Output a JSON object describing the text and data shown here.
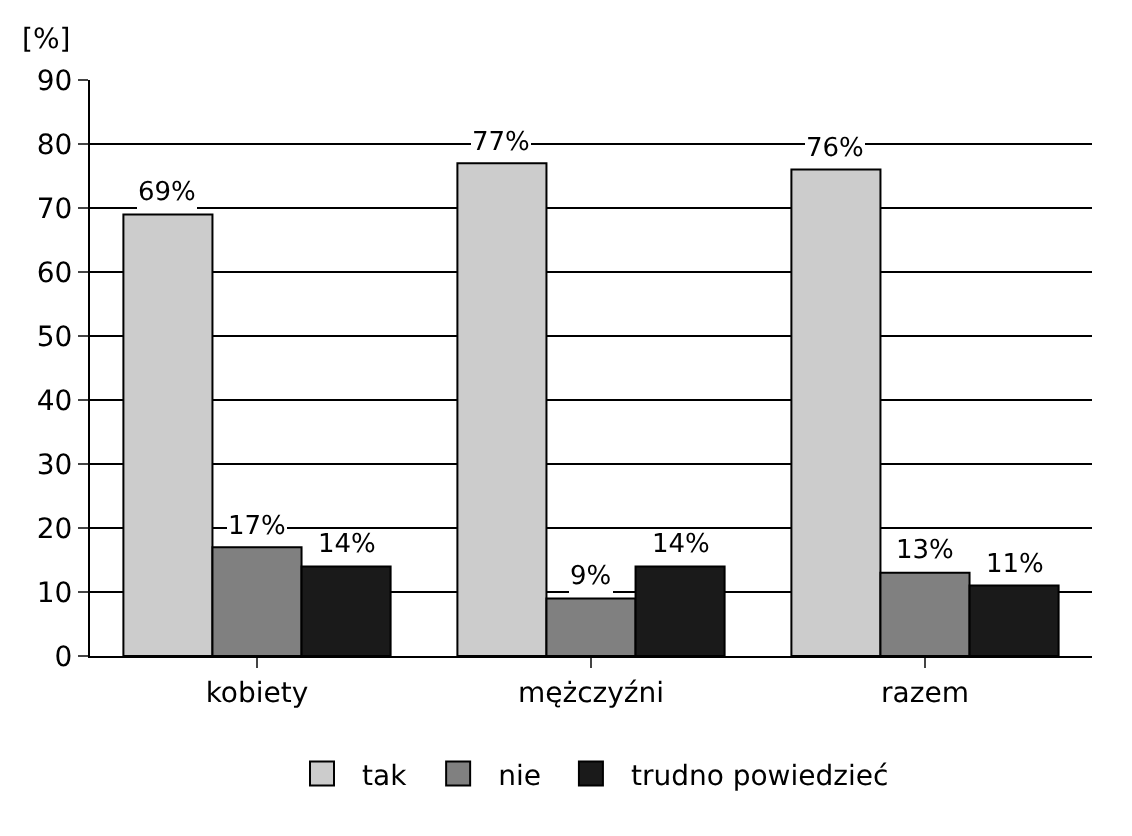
{
  "chart_data": {
    "type": "bar",
    "ylabel": "[%]",
    "categories": [
      "kobiety",
      "mężczyźni",
      "razem"
    ],
    "series": [
      {
        "name": "tak",
        "color": "#cccccc",
        "values": [
          69,
          77,
          76
        ],
        "value_labels": [
          "69%",
          "77%",
          "76%"
        ]
      },
      {
        "name": "nie",
        "color": "#808080",
        "values": [
          17,
          9,
          13
        ],
        "value_labels": [
          "17%",
          "9%",
          "13%"
        ]
      },
      {
        "name": "trudno powiedzieć",
        "color": "#1a1a1a",
        "values": [
          14,
          14,
          11
        ],
        "value_labels": [
          "14%",
          "14%",
          "11%"
        ]
      }
    ],
    "ylim": [
      0,
      90
    ],
    "yticks": [
      0,
      10,
      20,
      30,
      40,
      50,
      60,
      70,
      80,
      90
    ],
    "grid": "y",
    "legend": "bottom"
  }
}
